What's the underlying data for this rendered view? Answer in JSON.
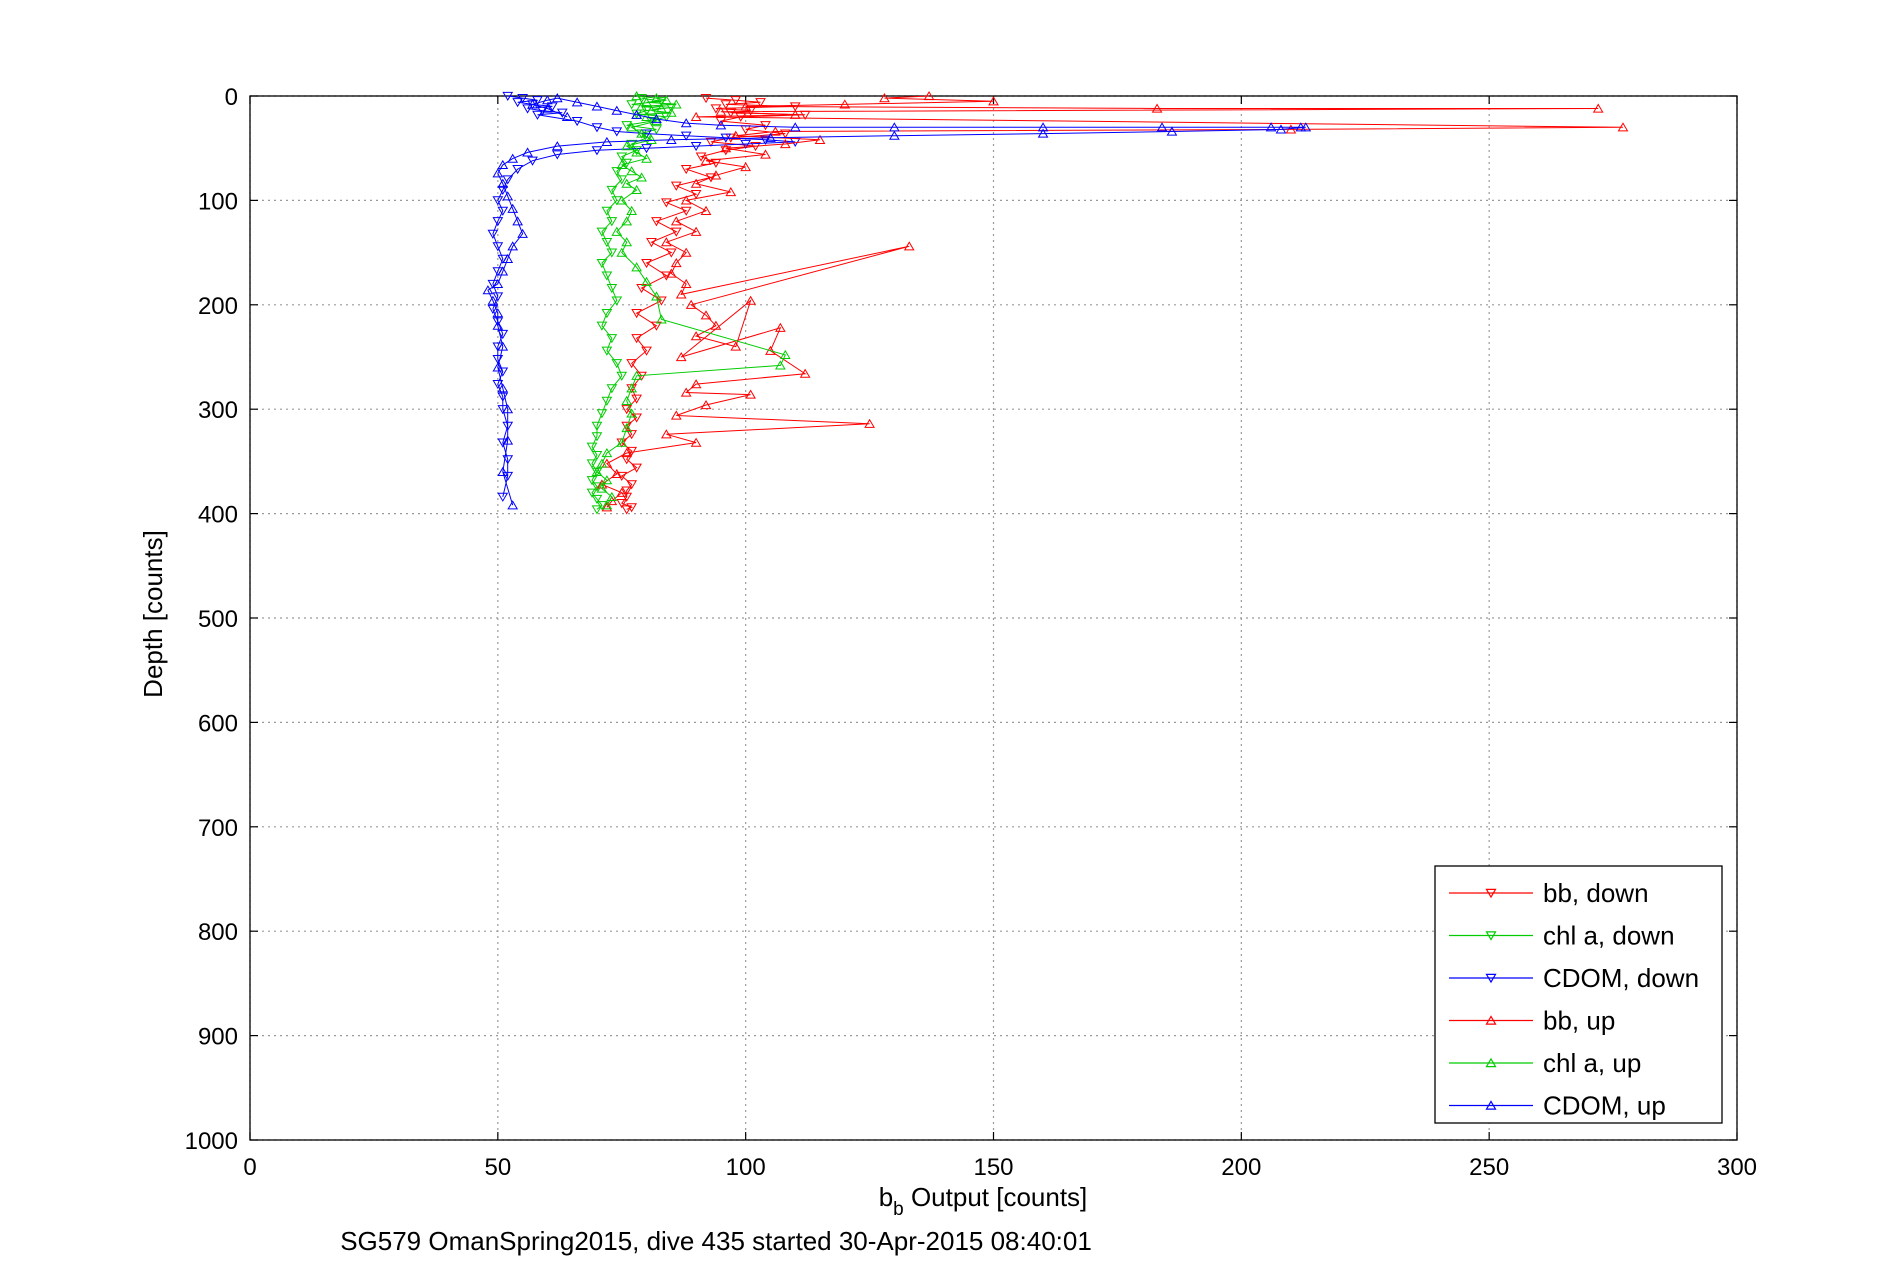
{
  "chart_data": {
    "type": "line",
    "xlabel_main": "b",
    "xlabel_sub": "b",
    "xlabel_rest": " Output [counts]",
    "ylabel": "Depth [counts]",
    "caption": "SG579 OmanSpring2015, dive 435 started 30-Apr-2015 08:40:01",
    "xlim": [
      0,
      300
    ],
    "ylim": [
      0,
      1000
    ],
    "y_reversed": true,
    "grid": true,
    "legend_position": "bottom-right",
    "xticks": [
      0,
      50,
      100,
      150,
      200,
      250,
      300
    ],
    "yticks": [
      0,
      100,
      200,
      300,
      400,
      500,
      600,
      700,
      800,
      900,
      1000
    ],
    "series": [
      {
        "name": "bb, down",
        "color": "#ff0000",
        "marker": "triangle-down",
        "x": [
          92,
          98,
          103,
          96,
          110,
          94,
          101,
          97,
          112,
          99,
          95,
          104,
          100,
          108,
          97,
          93,
          102,
          96,
          91,
          94,
          88,
          93,
          86,
          90,
          84,
          88,
          82,
          86,
          81,
          85,
          80,
          84,
          79,
          83,
          78,
          82,
          78,
          80,
          77,
          79,
          77,
          78,
          76,
          78,
          76,
          77,
          75,
          77,
          76,
          78,
          75,
          77,
          76,
          76,
          75,
          77,
          76
        ],
        "y": [
          2,
          4,
          6,
          8,
          10,
          12,
          14,
          16,
          18,
          20,
          24,
          28,
          32,
          36,
          40,
          44,
          48,
          52,
          58,
          64,
          70,
          78,
          86,
          94,
          102,
          110,
          120,
          130,
          140,
          150,
          160,
          172,
          184,
          196,
          208,
          220,
          232,
          244,
          256,
          268,
          280,
          290,
          300,
          308,
          316,
          324,
          332,
          340,
          348,
          356,
          364,
          372,
          378,
          384,
          390,
          394,
          396
        ]
      },
      {
        "name": "chl a, down",
        "color": "#00cc00",
        "marker": "triangle-down",
        "x": [
          79,
          83,
          77,
          85,
          80,
          78,
          84,
          81,
          76,
          82,
          79,
          80,
          77,
          78,
          75,
          76,
          74,
          75,
          73,
          74,
          72,
          73,
          71,
          72,
          73,
          71,
          72,
          73,
          74,
          72,
          71,
          73,
          72,
          74,
          75,
          73,
          72,
          71,
          70,
          70,
          69,
          70,
          69,
          70,
          69,
          70,
          69,
          70,
          71,
          70
        ],
        "y": [
          2,
          5,
          8,
          11,
          14,
          17,
          20,
          24,
          28,
          32,
          36,
          40,
          46,
          52,
          58,
          64,
          72,
          80,
          90,
          100,
          110,
          120,
          130,
          140,
          150,
          160,
          172,
          184,
          196,
          208,
          220,
          232,
          244,
          256,
          268,
          280,
          292,
          304,
          316,
          326,
          336,
          344,
          352,
          360,
          368,
          374,
          380,
          386,
          392,
          396
        ]
      },
      {
        "name": "CDOM, down",
        "color": "#0000ff",
        "marker": "triangle-down",
        "x": [
          52,
          55,
          58,
          54,
          57,
          61,
          56,
          59,
          63,
          58,
          66,
          70,
          74,
          80,
          88,
          96,
          104,
          110,
          100,
          90,
          80,
          70,
          62,
          57,
          54,
          52,
          51,
          50,
          51,
          50,
          49,
          50,
          51,
          50,
          49,
          50,
          49,
          50,
          51,
          50,
          50,
          51,
          50,
          51,
          51,
          52,
          51,
          52,
          52,
          51
        ],
        "y": [
          0,
          2,
          4,
          6,
          8,
          10,
          12,
          14,
          16,
          18,
          24,
          30,
          34,
          36,
          38,
          40,
          42,
          44,
          46,
          48,
          50,
          52,
          56,
          62,
          70,
          80,
          90,
          100,
          110,
          120,
          132,
          144,
          156,
          168,
          180,
          192,
          204,
          216,
          228,
          240,
          252,
          264,
          276,
          288,
          300,
          316,
          332,
          348,
          364,
          384
        ]
      },
      {
        "name": "bb, up",
        "color": "#ff0000",
        "marker": "triangle-up",
        "x": [
          137,
          128,
          150,
          120,
          100,
          183,
          272,
          95,
          110,
          90,
          277,
          210,
          106,
          98,
          115,
          108,
          96,
          104,
          92,
          100,
          94,
          90,
          97,
          88,
          92,
          86,
          90,
          84,
          88,
          86,
          85,
          88,
          87,
          133,
          89,
          92,
          94,
          90,
          98,
          101,
          87,
          107,
          105,
          112,
          90,
          88,
          101,
          92,
          86,
          125,
          84,
          90,
          76,
          72,
          74,
          71,
          75,
          73,
          72
        ],
        "y": [
          0,
          2,
          5,
          8,
          10,
          12,
          12,
          15,
          18,
          20,
          30,
          32,
          34,
          38,
          42,
          46,
          50,
          56,
          62,
          68,
          76,
          84,
          92,
          100,
          110,
          120,
          130,
          140,
          150,
          160,
          170,
          180,
          190,
          144,
          200,
          210,
          220,
          230,
          240,
          196,
          250,
          222,
          244,
          266,
          276,
          284,
          286,
          296,
          306,
          314,
          324,
          332,
          342,
          352,
          362,
          372,
          380,
          388,
          394
        ]
      },
      {
        "name": "chl a, up",
        "color": "#00cc00",
        "marker": "triangle-up",
        "x": [
          78,
          82,
          84,
          80,
          86,
          79,
          83,
          81,
          85,
          78,
          80,
          82,
          77,
          79,
          81,
          76,
          78,
          80,
          75,
          77,
          79,
          76,
          78,
          75,
          77,
          76,
          74,
          76,
          75,
          78,
          80,
          82,
          83,
          108,
          107,
          78,
          77,
          76,
          77,
          76,
          75,
          72,
          71,
          70,
          72,
          71,
          73,
          72
        ],
        "y": [
          0,
          2,
          4,
          6,
          8,
          10,
          12,
          14,
          16,
          18,
          20,
          24,
          30,
          36,
          42,
          48,
          54,
          60,
          66,
          72,
          78,
          84,
          90,
          100,
          110,
          120,
          130,
          140,
          150,
          164,
          178,
          192,
          214,
          248,
          258,
          268,
          280,
          292,
          304,
          318,
          332,
          342,
          352,
          360,
          368,
          376,
          384,
          392
        ]
      },
      {
        "name": "CDOM, up",
        "color": "#0000ff",
        "marker": "triangle-up",
        "x": [
          64,
          60,
          57,
          60,
          62,
          66,
          70,
          74,
          78,
          82,
          88,
          95,
          110,
          130,
          160,
          184,
          206,
          212,
          213,
          208,
          186,
          160,
          130,
          105,
          85,
          72,
          62,
          56,
          53,
          51,
          50,
          51,
          52,
          53,
          54,
          55,
          53,
          52,
          51,
          50,
          48,
          49,
          50,
          50,
          51,
          50,
          51,
          52,
          52,
          51,
          53
        ],
        "y": [
          20,
          12,
          8,
          4,
          2,
          6,
          10,
          14,
          18,
          22,
          26,
          28,
          30,
          30,
          30,
          30,
          30,
          30,
          30,
          32,
          34,
          36,
          38,
          40,
          42,
          44,
          48,
          54,
          60,
          66,
          74,
          84,
          96,
          108,
          120,
          132,
          144,
          156,
          168,
          180,
          186,
          196,
          208,
          220,
          240,
          260,
          280,
          300,
          330,
          360,
          392
        ]
      }
    ]
  }
}
